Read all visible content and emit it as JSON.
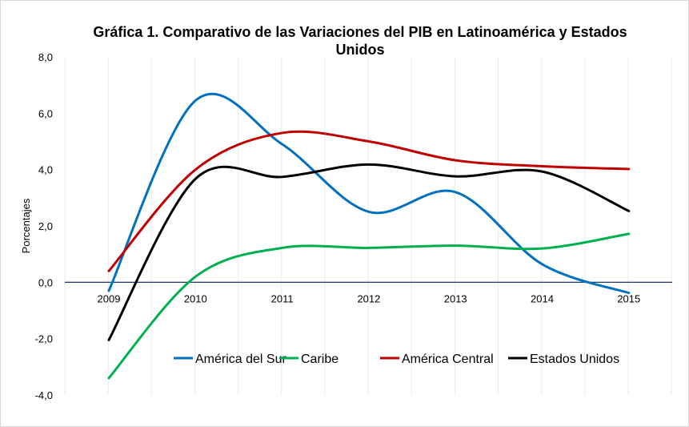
{
  "chart_data": {
    "type": "line",
    "smoothed": true,
    "title_lines": [
      "Gráfica 1. Comparativo de las Variaciones del PIB en Latinoamérica y Estados",
      "Unidos"
    ],
    "xlabel": "",
    "ylabel": "Porcentajes",
    "ylim": [
      -4,
      8
    ],
    "yticks": [
      "8,0",
      "6,0",
      "4,0",
      "2,0",
      "0,0",
      "-2,0",
      "-4,0"
    ],
    "ytick_values": [
      8,
      6,
      4,
      2,
      0,
      -2,
      -4
    ],
    "categories": [
      "2009",
      "2010",
      "2011",
      "2012",
      "2013",
      "2014",
      "2015"
    ],
    "grid": "vertical",
    "legend_position": "bottom-inside",
    "series": [
      {
        "name": "América del Sur",
        "color": "#0070C0",
        "values": [
          -0.3,
          6.45,
          4.9,
          2.5,
          3.2,
          0.64,
          -0.38
        ]
      },
      {
        "name": "Caribe",
        "color": "#00B050",
        "values": [
          -3.4,
          0.2,
          1.22,
          1.22,
          1.3,
          1.2,
          1.72
        ]
      },
      {
        "name": "América Central",
        "color": "#C00000",
        "values": [
          0.4,
          4.0,
          5.3,
          5.0,
          4.33,
          4.12,
          4.02
        ]
      },
      {
        "name": "Estados Unidos",
        "color": "#000000",
        "values": [
          -2.05,
          3.67,
          3.74,
          4.18,
          3.76,
          3.93,
          2.53
        ]
      }
    ]
  }
}
